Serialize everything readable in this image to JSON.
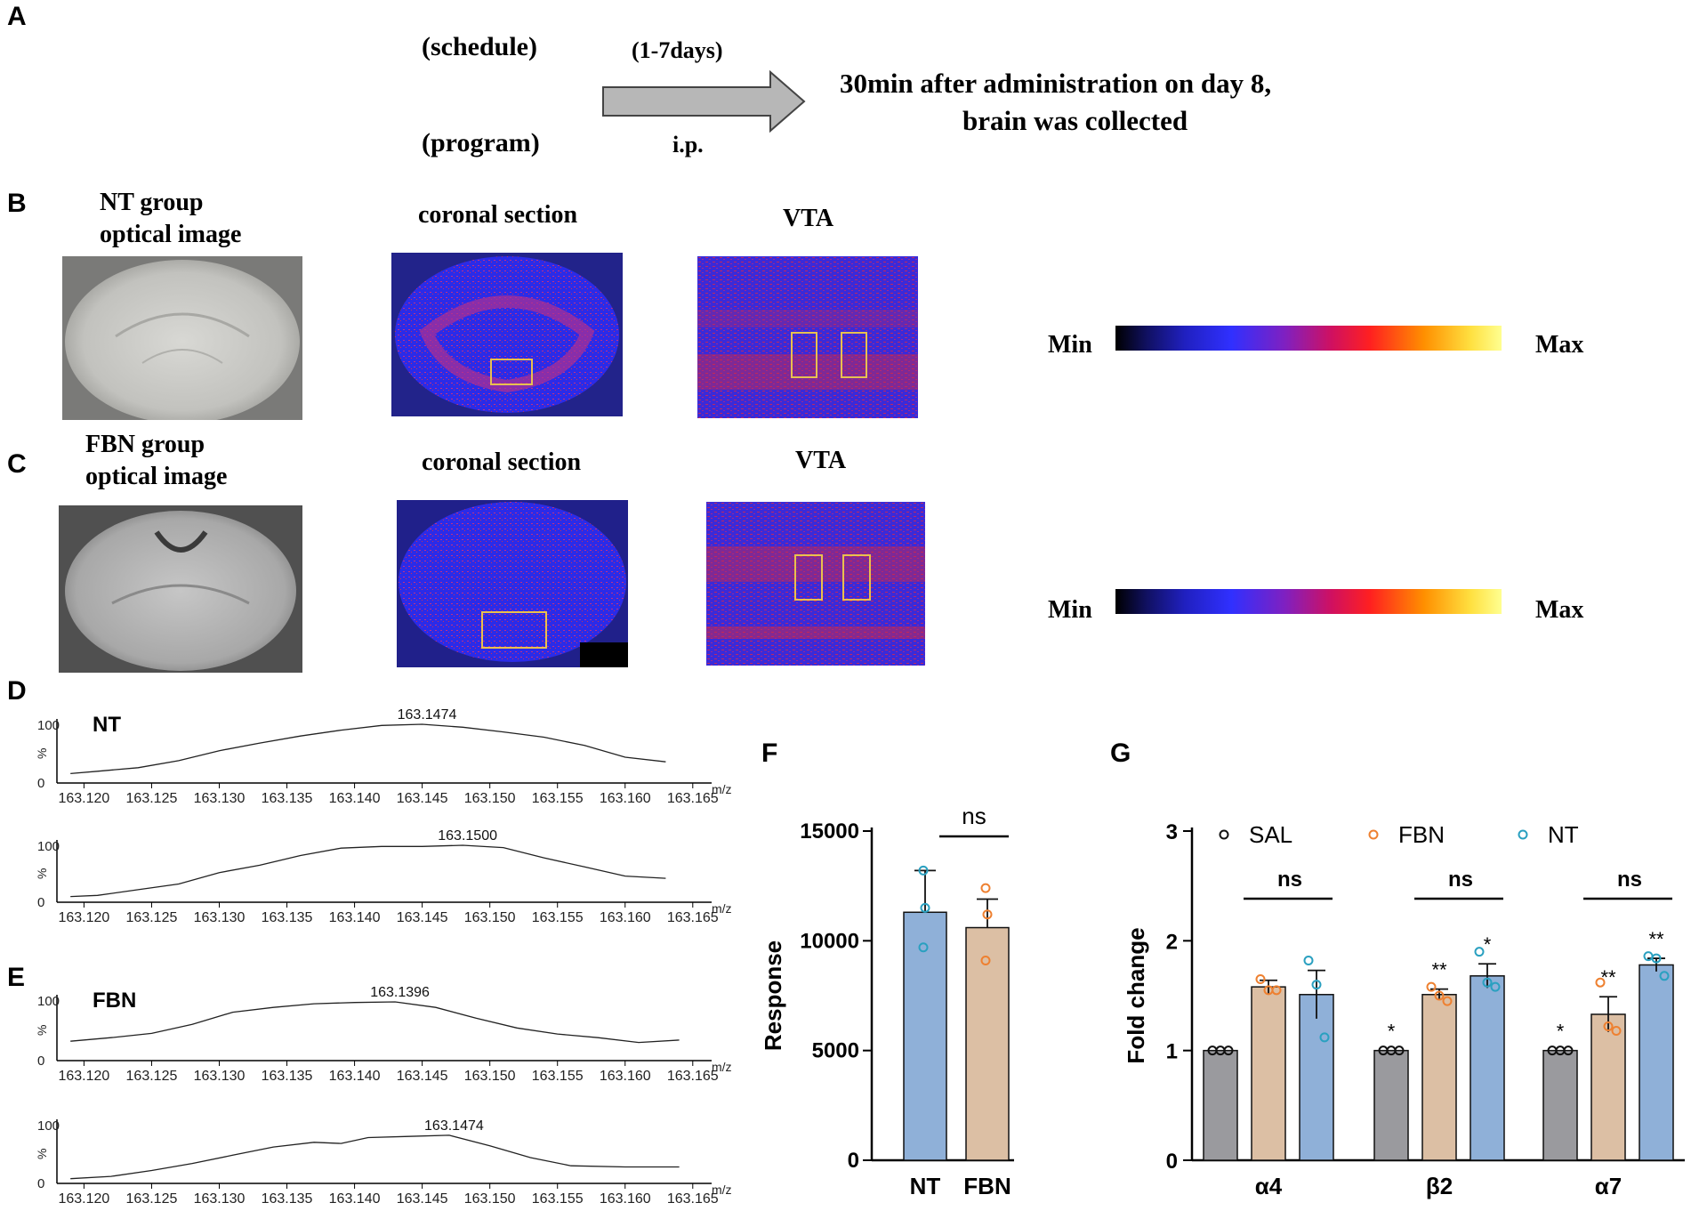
{
  "panel_letters": {
    "A": "A",
    "B": "B",
    "C": "C",
    "D": "D",
    "E": "E",
    "F": "F",
    "G": "G"
  },
  "schedule": {
    "schedule_label": "(schedule)",
    "program_label": "(program)",
    "duration_label": "(1-7days)",
    "route_label": "i.p.",
    "result_line1": "30min after administration on day 8,",
    "result_line2": "brain was collected"
  },
  "row_b": {
    "optical_title_line1": "NT group",
    "optical_title_line2": "optical image",
    "coronal_title": "coronal section",
    "vta_title": "VTA",
    "scale_min": "Min",
    "scale_max": "Max"
  },
  "row_c": {
    "optical_title_line1": "FBN group",
    "optical_title_line2": "optical image",
    "coronal_title": "coronal section",
    "vta_title": "VTA",
    "scale_min": "Min",
    "scale_max": "Max"
  },
  "colors": {
    "nt_bar": "#8fb0d8",
    "fbn_bar": "#dcbfa4",
    "sal_bar": "#9a9a9e",
    "nt_point": "#2aa0c0",
    "fbn_point": "#ee8030",
    "box": "#e8c050",
    "heat_bg": "#2a2ae0"
  },
  "chart_data": [
    {
      "id": "D-NT-1",
      "type": "line",
      "label": "NT",
      "peak_label": "163.1474",
      "y_top_label": "100",
      "y_bottom_label": "0",
      "y_axis_label": "%",
      "x_unit_label": "m/z",
      "xticks": [
        "163.120",
        "163.125",
        "163.130",
        "163.135",
        "163.140",
        "163.145",
        "163.150",
        "163.155",
        "163.160",
        "163.165"
      ],
      "xlim": [
        163.118,
        163.166
      ],
      "ylim": [
        0,
        100
      ],
      "x": [
        163.119,
        163.121,
        163.124,
        163.127,
        163.13,
        163.133,
        163.136,
        163.139,
        163.142,
        163.145,
        163.148,
        163.151,
        163.154,
        163.157,
        163.16,
        163.163
      ],
      "y": [
        16,
        20,
        26,
        38,
        55,
        68,
        80,
        90,
        98,
        100,
        95,
        87,
        78,
        64,
        44,
        36
      ]
    },
    {
      "id": "D-NT-2",
      "type": "line",
      "peak_label": "163.1500",
      "y_top_label": "100",
      "y_bottom_label": "0",
      "y_axis_label": "%",
      "x_unit_label": "m/z",
      "xticks": [
        "163.120",
        "163.125",
        "163.130",
        "163.135",
        "163.140",
        "163.145",
        "163.150",
        "163.155",
        "163.160",
        "163.165"
      ],
      "xlim": [
        163.118,
        163.166
      ],
      "ylim": [
        0,
        100
      ],
      "x": [
        163.119,
        163.121,
        163.124,
        163.127,
        163.13,
        163.133,
        163.136,
        163.139,
        163.142,
        163.145,
        163.148,
        163.151,
        163.154,
        163.157,
        163.16,
        163.163
      ],
      "y": [
        10,
        12,
        22,
        32,
        52,
        65,
        82,
        95,
        98,
        98,
        100,
        96,
        78,
        62,
        46,
        42
      ]
    },
    {
      "id": "E-FBN-1",
      "type": "line",
      "label": "FBN",
      "peak_label": "163.1396",
      "y_top_label": "100",
      "y_bottom_label": "0",
      "y_axis_label": "%",
      "x_unit_label": "m/z",
      "xticks": [
        "163.120",
        "163.125",
        "163.130",
        "163.135",
        "163.140",
        "163.145",
        "163.150",
        "163.155",
        "163.160",
        "163.165"
      ],
      "xlim": [
        163.118,
        163.166
      ],
      "ylim": [
        0,
        100
      ],
      "x": [
        163.119,
        163.122,
        163.125,
        163.128,
        163.131,
        163.134,
        163.137,
        163.14,
        163.143,
        163.146,
        163.149,
        163.152,
        163.155,
        163.158,
        163.161,
        163.164
      ],
      "y": [
        32,
        38,
        45,
        60,
        80,
        88,
        94,
        96,
        97,
        88,
        70,
        54,
        44,
        38,
        30,
        34
      ]
    },
    {
      "id": "E-FBN-2",
      "type": "line",
      "peak_label": "163.1474",
      "y_top_label": "100",
      "y_bottom_label": "0",
      "y_axis_label": "%",
      "x_unit_label": "m/z",
      "xticks": [
        "163.120",
        "163.125",
        "163.130",
        "163.135",
        "163.140",
        "163.145",
        "163.150",
        "163.155",
        "163.160",
        "163.165"
      ],
      "xlim": [
        163.118,
        163.166
      ],
      "ylim": [
        0,
        100
      ],
      "x": [
        163.119,
        163.122,
        163.125,
        163.128,
        163.131,
        163.134,
        163.137,
        163.139,
        163.141,
        163.144,
        163.147,
        163.15,
        163.153,
        163.156,
        163.16,
        163.164
      ],
      "y": [
        8,
        12,
        22,
        34,
        48,
        62,
        70,
        68,
        78,
        80,
        82,
        64,
        44,
        30,
        28,
        28
      ]
    },
    {
      "id": "F",
      "type": "bar",
      "ylabel": "Response",
      "categories": [
        "NT",
        "FBN"
      ],
      "values": [
        11300,
        10600
      ],
      "errors": [
        1900,
        1300
      ],
      "points": [
        [
          13200,
          11500,
          9700
        ],
        [
          12400,
          11200,
          9100
        ]
      ],
      "ylim": [
        0,
        15000
      ],
      "yticks": [
        "0",
        "5000",
        "10000",
        "15000"
      ],
      "annotation": "ns"
    },
    {
      "id": "G",
      "type": "bar",
      "ylabel": "Fold change",
      "categories": [
        "α4",
        "β2",
        "α7"
      ],
      "series": [
        {
          "name": "SAL",
          "values": [
            1.0,
            1.0,
            1.0
          ],
          "errors": [
            0,
            0,
            0
          ],
          "points": [
            [
              1,
              1,
              1
            ],
            [
              1,
              1,
              1
            ],
            [
              1,
              1,
              1
            ]
          ]
        },
        {
          "name": "FBN",
          "values": [
            1.58,
            1.51,
            1.33
          ],
          "errors": [
            0.06,
            0.05,
            0.16
          ],
          "points": [
            [
              1.65,
              1.55,
              1.55
            ],
            [
              1.58,
              1.5,
              1.45
            ],
            [
              1.62,
              1.22,
              1.18
            ]
          ]
        },
        {
          "name": "NT",
          "values": [
            1.51,
            1.68,
            1.78
          ],
          "errors": [
            0.22,
            0.11,
            0.06
          ],
          "points": [
            [
              1.82,
              1.6,
              1.12
            ],
            [
              1.9,
              1.62,
              1.58
            ],
            [
              1.86,
              1.84,
              1.68
            ]
          ]
        }
      ],
      "significance": [
        [
          "",
          "*",
          "*"
        ],
        [
          "",
          "**",
          "**"
        ],
        [
          "",
          "*",
          "**"
        ]
      ],
      "group_annotation": [
        "ns",
        "ns",
        "ns"
      ],
      "ylim": [
        0,
        3
      ],
      "yticks": [
        "0",
        "1",
        "2",
        "3"
      ],
      "legend": [
        "SAL",
        "FBN",
        "NT"
      ]
    }
  ]
}
